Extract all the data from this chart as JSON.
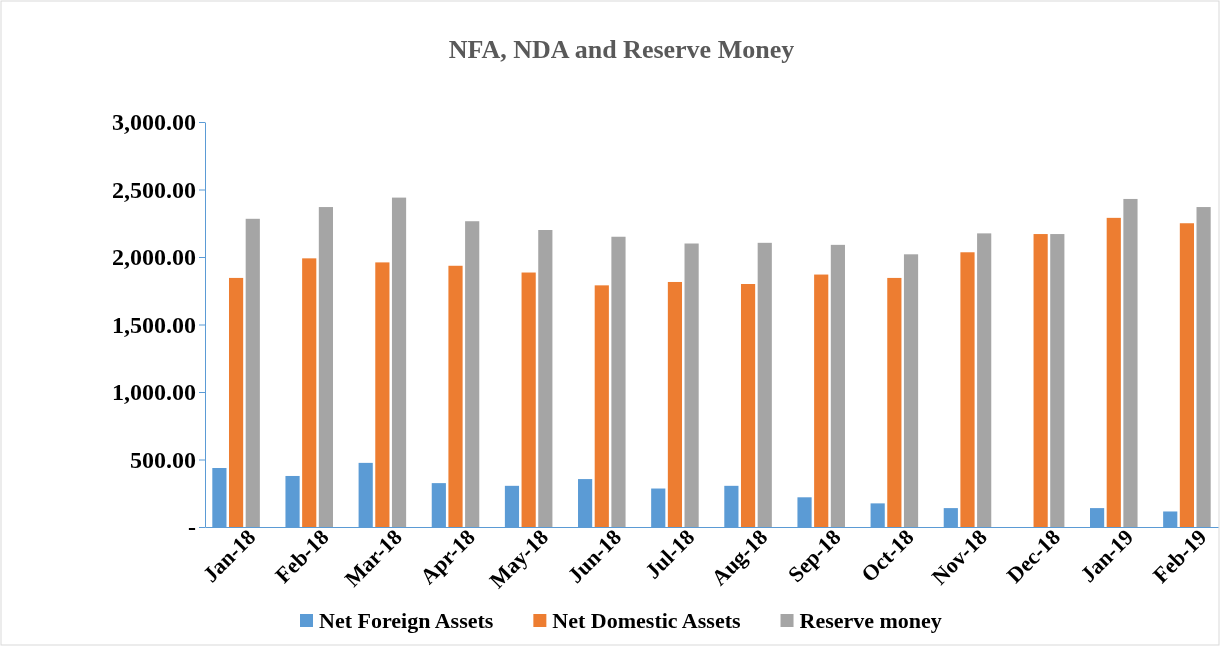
{
  "chart_data": {
    "type": "bar",
    "title": "NFA, NDA and Reserve Money",
    "categories": [
      "Jan-18",
      "Feb-18",
      "Mar-18",
      "Apr-18",
      "May-18",
      "Jun-18",
      "Jul-18",
      "Aug-18",
      "Sep-18",
      "Oct-18",
      "Nov-18",
      "Dec-18",
      "Jan-19",
      "Feb-19"
    ],
    "series": [
      {
        "name": "Net Foreign Assets",
        "color": "#5b9bd5",
        "values": [
          437,
          378,
          475,
          325,
          305,
          355,
          285,
          305,
          220,
          175,
          140,
          0,
          140,
          115
        ]
      },
      {
        "name": "Net Domestic Assets",
        "color": "#ed7d31",
        "values": [
          1845,
          1990,
          1960,
          1935,
          1885,
          1790,
          1815,
          1800,
          1870,
          1845,
          2035,
          2170,
          2290,
          2250
        ]
      },
      {
        "name": "Reserve money",
        "color": "#a5a5a5",
        "values": [
          2283,
          2370,
          2440,
          2265,
          2200,
          2150,
          2100,
          2105,
          2090,
          2020,
          2175,
          2170,
          2430,
          2370
        ]
      }
    ],
    "ylim": [
      0,
      3000
    ],
    "yticks": [
      {
        "value": 0,
        "label": "-"
      },
      {
        "value": 500,
        "label": "500.00"
      },
      {
        "value": 1000,
        "label": "1,000.00"
      },
      {
        "value": 1500,
        "label": "1,500.00"
      },
      {
        "value": 2000,
        "label": "2,000.00"
      },
      {
        "value": 2500,
        "label": "2,500.00"
      },
      {
        "value": 3000,
        "label": "3,000.00"
      }
    ],
    "grid": false,
    "legend": "bottom"
  }
}
